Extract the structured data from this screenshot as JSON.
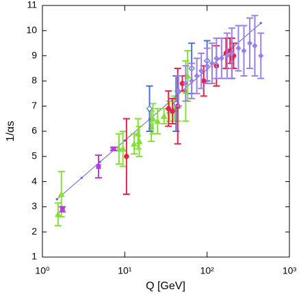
{
  "chart_data": {
    "type": "scatter",
    "xlabel": "Q [GeV]",
    "ylabel": "1/αs",
    "xscale": "log",
    "xlim": [
      1,
      1000
    ],
    "xticks": [
      {
        "value": 1,
        "label": "10⁰"
      },
      {
        "value": 10,
        "label": "10¹"
      },
      {
        "value": 100,
        "label": "10²"
      },
      {
        "value": 1000,
        "label": "10³"
      }
    ],
    "ylim": [
      1,
      11
    ],
    "yticks": [
      1,
      2,
      3,
      4,
      5,
      6,
      7,
      8,
      9,
      10,
      11
    ],
    "series": [
      {
        "color": "#6a55e0",
        "style": "line",
        "marker": "dot",
        "x": [
          1.5,
          3,
          5,
          10,
          20,
          50,
          100,
          200,
          450
        ],
        "values": [
          3.3,
          4.15,
          4.78,
          5.63,
          6.48,
          7.61,
          8.46,
          9.31,
          10.3
        ]
      },
      {
        "color": "#84e034",
        "style": "points",
        "marker": "triangle",
        "x": [
          1.55,
          1.7,
          8.5,
          9.5,
          13,
          14.5,
          15,
          21,
          22,
          25,
          30,
          35,
          40,
          44,
          55,
          58
        ],
        "values": [
          2.7,
          3.5,
          5.3,
          5.3,
          5.5,
          5.9,
          5.6,
          6.2,
          6.5,
          6.4,
          6.6,
          6.8,
          6.9,
          7.0,
          7.6,
          8.2
        ],
        "errors": [
          0.45,
          0.9,
          0.6,
          0.7,
          0.4,
          0.6,
          0.6,
          0.6,
          0.6,
          0.5,
          0.3,
          0.4,
          0.5,
          0.6,
          1.2,
          1.0
        ]
      },
      {
        "color": "#b440d4",
        "style": "points",
        "marker": "square",
        "x": [
          1.75,
          4.8,
          7.3
        ],
        "values": [
          2.9,
          4.6,
          5.3
        ],
        "errors": [
          0.1,
          0.45,
          0.06
        ]
      },
      {
        "color": "#4a70e0",
        "style": "points",
        "marker": "open-diamond",
        "x": [
          20,
          42,
          65,
          100
        ],
        "values": [
          6.9,
          7.1,
          8.5,
          8.8
        ],
        "errors": [
          0.9,
          1.1,
          1.0,
          0.8
        ]
      },
      {
        "color": "#e8204a",
        "style": "points",
        "marker": "circle",
        "x": [
          10.5,
          34,
          38,
          44,
          50,
          91,
          130,
          170,
          190,
          200,
          210
        ],
        "values": [
          5.0,
          6.9,
          6.8,
          7.0,
          7.9,
          8.0,
          8.6,
          9.1,
          9.2,
          8.9,
          9.0
        ],
        "errors": [
          1.5,
          0.7,
          0.5,
          1.5,
          0.3,
          0.6,
          0.8,
          0.6,
          0.5,
          0.8,
          0.5
        ]
      },
      {
        "color": "#9a80e8",
        "style": "points",
        "marker": "diamond",
        "x": [
          45,
          55,
          65,
          75,
          85,
          100,
          115,
          130,
          150,
          175,
          200,
          240,
          280,
          330,
          380,
          450
        ],
        "values": [
          7.6,
          7.9,
          8.0,
          8.2,
          8.4,
          8.6,
          8.7,
          8.9,
          8.9,
          9.0,
          9.1,
          9.3,
          9.2,
          9.5,
          9.4,
          9.0
        ],
        "errors": [
          0.6,
          0.7,
          0.7,
          0.7,
          0.7,
          0.7,
          0.8,
          0.8,
          0.8,
          0.9,
          1.0,
          0.9,
          1.0,
          1.0,
          1.2,
          0.9
        ]
      }
    ]
  }
}
